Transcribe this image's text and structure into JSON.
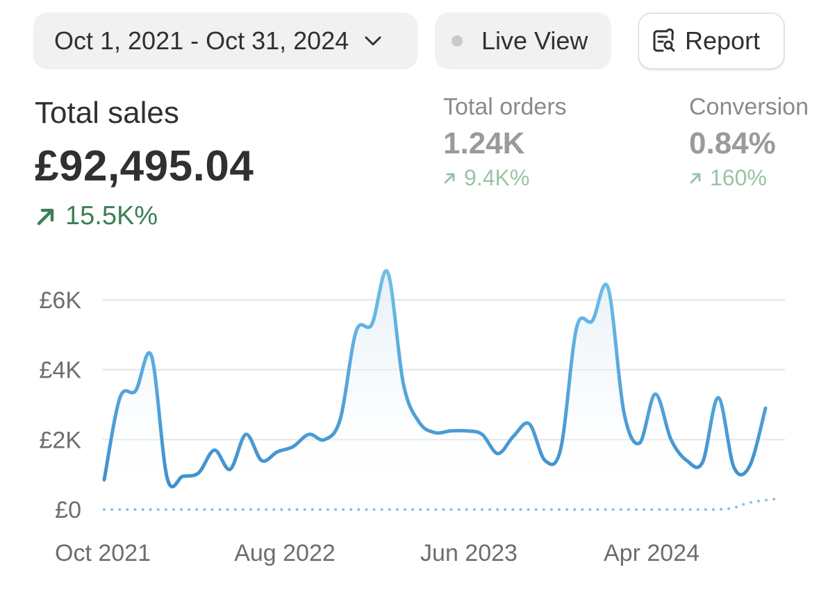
{
  "toolbar": {
    "date_range": "Oct 1, 2021 - Oct 31, 2024",
    "live_view_label": "Live View",
    "report_label": "Report"
  },
  "total_sales": {
    "label": "Total sales",
    "value": "£92,495.04",
    "change": "15.5K%"
  },
  "metrics": {
    "orders": {
      "label": "Total orders",
      "value": "1.24K",
      "change": "9.4K%"
    },
    "conversion": {
      "label": "Conversion",
      "value": "0.84%",
      "change": "160%"
    }
  },
  "colors": {
    "positive": "#3b7f53",
    "positive_muted": "#98c4a6",
    "series_line": "#4a9fd8",
    "comparison_line": "#8cc2de"
  },
  "chart_data": {
    "type": "line",
    "y_ticks": [
      "£0",
      "£2K",
      "£4K",
      "£6K"
    ],
    "x_ticks": [
      "Oct 2021",
      "Aug 2022",
      "Jun 2023",
      "Apr 2024"
    ],
    "ylim": [
      0,
      6000
    ],
    "grid": true,
    "series": [
      {
        "values": [
          850,
          3200,
          3400,
          4400,
          900,
          950,
          1050,
          1700,
          1150,
          2150,
          1400,
          1650,
          1800,
          2150,
          2000,
          2600,
          5100,
          5300,
          6800,
          3600,
          2500,
          2200,
          2250,
          2250,
          2150,
          1600,
          2100,
          2450,
          1400,
          1750,
          5200,
          5400,
          6350,
          2800,
          1900,
          3300,
          2000,
          1400,
          1350,
          3200,
          1200,
          1250,
          2900
        ]
      },
      {
        "values": [
          0,
          0,
          0,
          0,
          0,
          0,
          0,
          0,
          0,
          0,
          0,
          0,
          0,
          0,
          0,
          0,
          0,
          0,
          0,
          0,
          0,
          0,
          0,
          0,
          0,
          0,
          0,
          0,
          0,
          0,
          0,
          0,
          0,
          0,
          0,
          0,
          0,
          0,
          0,
          0,
          50,
          200,
          300
        ]
      }
    ]
  }
}
